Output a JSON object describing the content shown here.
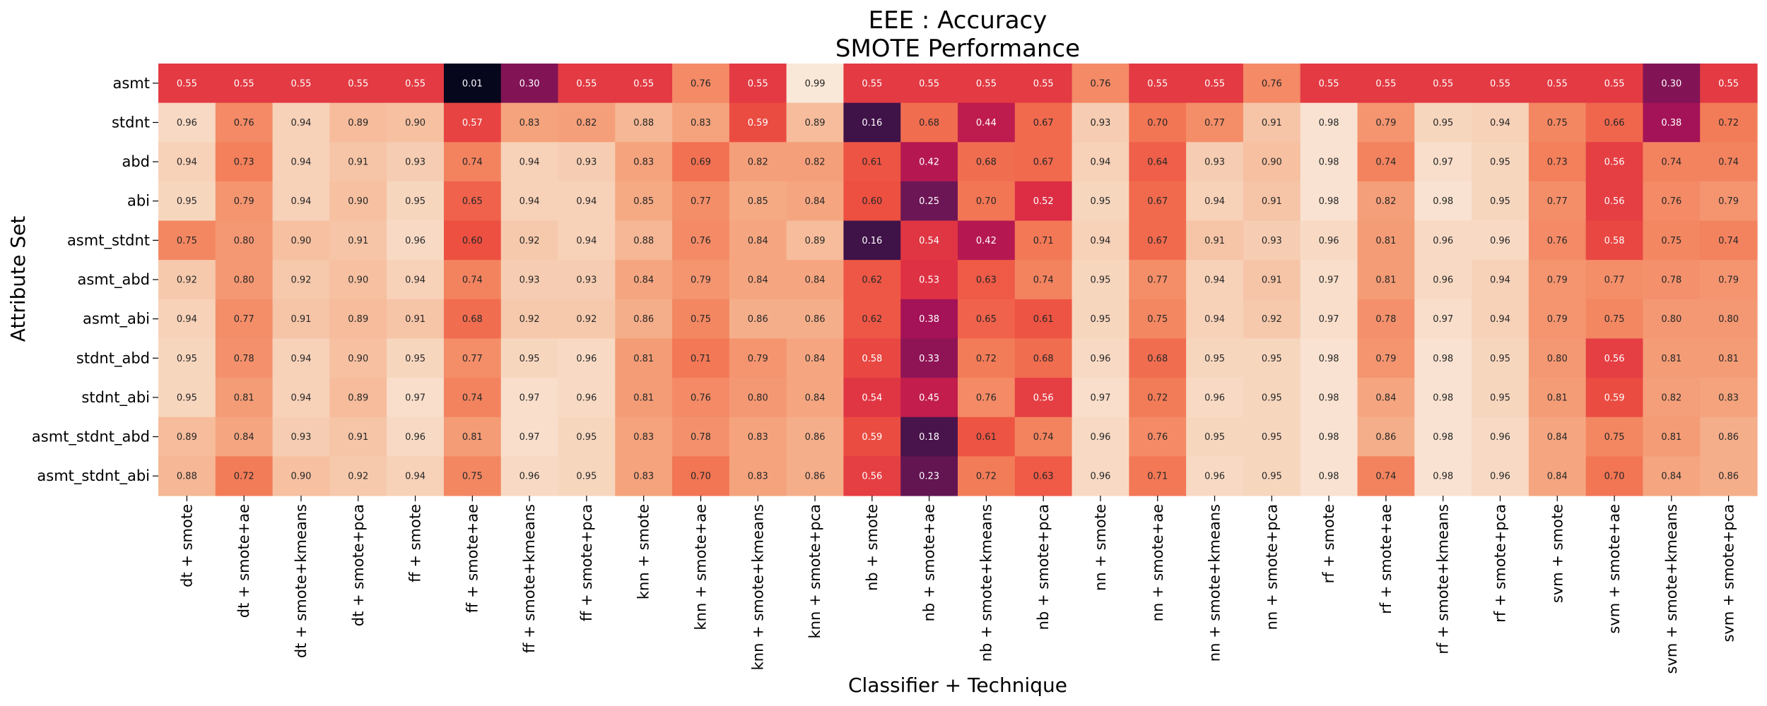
{
  "chart_data": {
    "type": "heatmap",
    "title": "EEE : Accuracy",
    "subtitle": "SMOTE Performance",
    "xlabel": "Classifier + Technique",
    "ylabel": "Attribute Set",
    "colormap": "rocket",
    "color_range": [
      0,
      1
    ],
    "annotated": true,
    "grid": false,
    "rows": [
      "asmt",
      "stdnt",
      "abd",
      "abi",
      "asmt_stdnt",
      "asmt_abd",
      "asmt_abi",
      "stdnt_abd",
      "stdnt_abi",
      "asmt_stdnt_abd",
      "asmt_stdnt_abi"
    ],
    "columns": [
      "dt + smote",
      "dt + smote+ae",
      "dt + smote+kmeans",
      "dt + smote+pca",
      "ff + smote",
      "ff + smote+ae",
      "ff + smote+kmeans",
      "ff + smote+pca",
      "knn + smote",
      "knn + smote+ae",
      "knn + smote+kmeans",
      "knn + smote+pca",
      "nb + smote",
      "nb + smote+ae",
      "nb + smote+kmeans",
      "nb + smote+pca",
      "nn + smote",
      "nn + smote+ae",
      "nn + smote+kmeans",
      "nn + smote+pca",
      "rf + smote",
      "rf + smote+ae",
      "rf + smote+kmeans",
      "rf + smote+pca",
      "svm + smote",
      "svm + smote+ae",
      "svm + smote+kmeans",
      "svm + smote+pca"
    ],
    "values": [
      [
        0.55,
        0.55,
        0.55,
        0.55,
        0.55,
        0.01,
        0.3,
        0.55,
        0.55,
        0.76,
        0.55,
        0.99,
        0.55,
        0.55,
        0.55,
        0.55,
        0.76,
        0.55,
        0.55,
        0.76,
        0.55,
        0.55,
        0.55,
        0.55,
        0.55,
        0.55,
        0.3,
        0.55
      ],
      [
        0.96,
        0.76,
        0.94,
        0.89,
        0.9,
        0.57,
        0.83,
        0.82,
        0.88,
        0.83,
        0.59,
        0.89,
        0.16,
        0.68,
        0.44,
        0.67,
        0.93,
        0.7,
        0.77,
        0.91,
        0.98,
        0.79,
        0.95,
        0.94,
        0.75,
        0.66,
        0.38,
        0.72
      ],
      [
        0.94,
        0.73,
        0.94,
        0.91,
        0.93,
        0.74,
        0.94,
        0.93,
        0.83,
        0.69,
        0.82,
        0.82,
        0.61,
        0.42,
        0.68,
        0.67,
        0.94,
        0.64,
        0.93,
        0.9,
        0.98,
        0.74,
        0.97,
        0.95,
        0.73,
        0.56,
        0.74,
        0.74
      ],
      [
        0.95,
        0.79,
        0.94,
        0.9,
        0.95,
        0.65,
        0.94,
        0.94,
        0.85,
        0.77,
        0.85,
        0.84,
        0.6,
        0.25,
        0.7,
        0.52,
        0.95,
        0.67,
        0.94,
        0.91,
        0.98,
        0.82,
        0.98,
        0.95,
        0.77,
        0.56,
        0.76,
        0.79
      ],
      [
        0.75,
        0.8,
        0.9,
        0.91,
        0.96,
        0.6,
        0.92,
        0.94,
        0.88,
        0.76,
        0.84,
        0.89,
        0.16,
        0.54,
        0.42,
        0.71,
        0.94,
        0.67,
        0.91,
        0.93,
        0.96,
        0.81,
        0.96,
        0.96,
        0.76,
        0.58,
        0.75,
        0.74
      ],
      [
        0.92,
        0.8,
        0.92,
        0.9,
        0.94,
        0.74,
        0.93,
        0.93,
        0.84,
        0.79,
        0.84,
        0.84,
        0.62,
        0.53,
        0.63,
        0.74,
        0.95,
        0.77,
        0.94,
        0.91,
        0.97,
        0.81,
        0.96,
        0.94,
        0.79,
        0.77,
        0.78,
        0.79
      ],
      [
        0.94,
        0.77,
        0.91,
        0.89,
        0.91,
        0.68,
        0.92,
        0.92,
        0.86,
        0.75,
        0.86,
        0.86,
        0.62,
        0.38,
        0.65,
        0.61,
        0.95,
        0.75,
        0.94,
        0.92,
        0.97,
        0.78,
        0.97,
        0.94,
        0.79,
        0.75,
        0.8,
        0.8
      ],
      [
        0.95,
        0.78,
        0.94,
        0.9,
        0.95,
        0.77,
        0.95,
        0.96,
        0.81,
        0.71,
        0.79,
        0.84,
        0.58,
        0.33,
        0.72,
        0.68,
        0.96,
        0.68,
        0.95,
        0.95,
        0.98,
        0.79,
        0.98,
        0.95,
        0.8,
        0.56,
        0.81,
        0.81
      ],
      [
        0.95,
        0.81,
        0.94,
        0.89,
        0.97,
        0.74,
        0.97,
        0.96,
        0.81,
        0.76,
        0.8,
        0.84,
        0.54,
        0.45,
        0.76,
        0.56,
        0.97,
        0.72,
        0.96,
        0.95,
        0.98,
        0.84,
        0.98,
        0.95,
        0.81,
        0.59,
        0.82,
        0.83
      ],
      [
        0.89,
        0.84,
        0.93,
        0.91,
        0.96,
        0.81,
        0.97,
        0.95,
        0.83,
        0.78,
        0.83,
        0.86,
        0.59,
        0.18,
        0.61,
        0.74,
        0.96,
        0.76,
        0.95,
        0.95,
        0.98,
        0.86,
        0.98,
        0.96,
        0.84,
        0.75,
        0.81,
        0.86
      ],
      [
        0.88,
        0.72,
        0.9,
        0.92,
        0.94,
        0.75,
        0.96,
        0.95,
        0.83,
        0.7,
        0.83,
        0.86,
        0.56,
        0.23,
        0.72,
        0.63,
        0.96,
        0.71,
        0.96,
        0.95,
        0.98,
        0.74,
        0.98,
        0.96,
        0.84,
        0.7,
        0.84,
        0.86
      ]
    ]
  }
}
